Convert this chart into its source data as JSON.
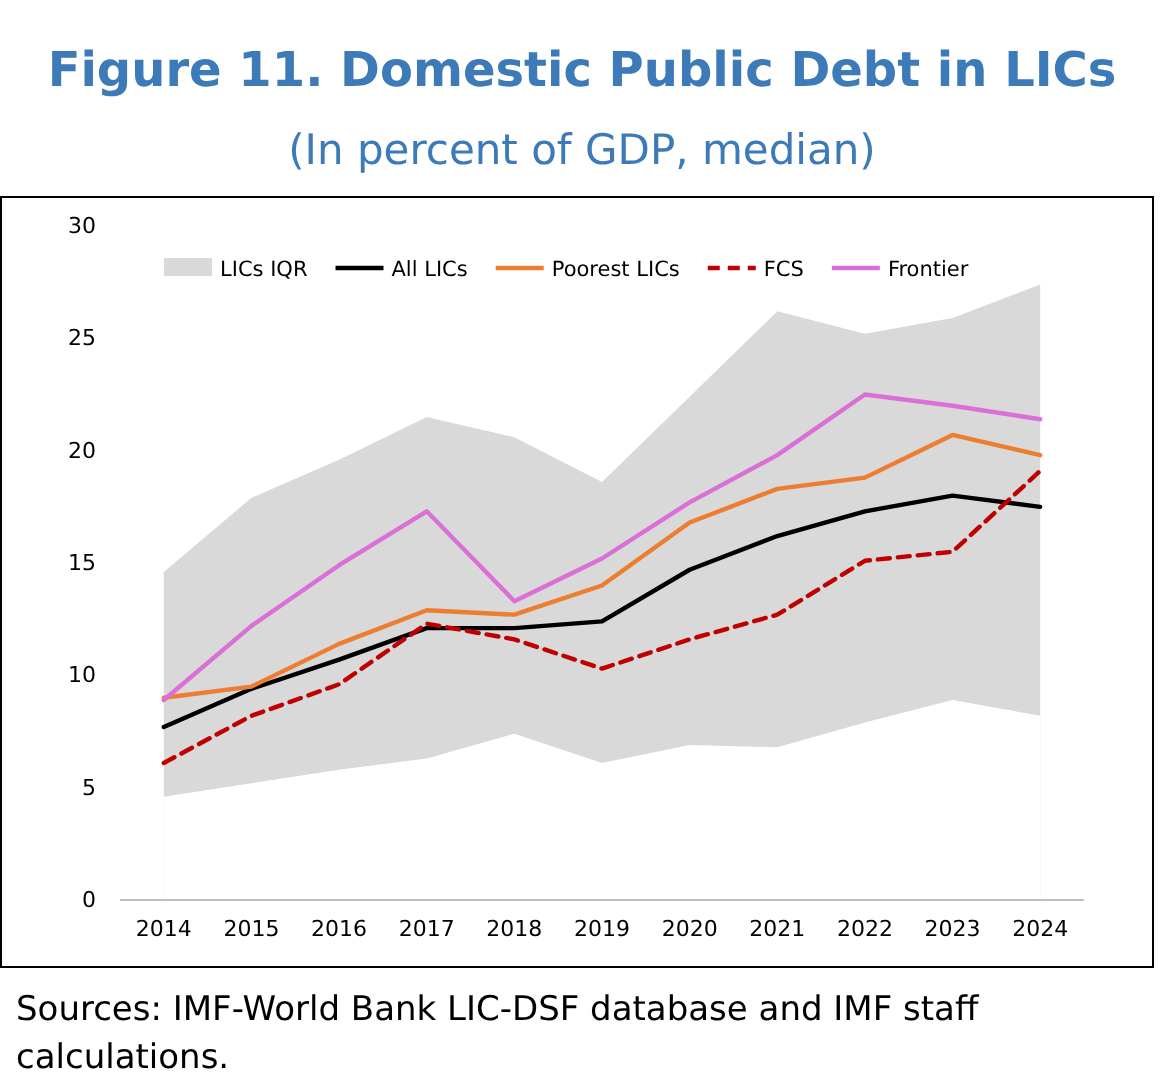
{
  "chart_data": {
    "type": "line",
    "title": "Figure 11. Domestic Public Debt in LICs",
    "subtitle": "(In percent of GDP, median)",
    "categories": [
      "2014",
      "2015",
      "2016",
      "2017",
      "2018",
      "2019",
      "2020",
      "2021",
      "2022",
      "2023",
      "2024"
    ],
    "series": [
      {
        "name": "LICs IQR",
        "type": "area",
        "color": "#d9d9d9",
        "values": [
          14.6,
          17.9,
          19.6,
          21.5,
          20.6,
          18.6,
          22.4,
          26.2,
          25.2,
          25.9,
          27.4
        ]
      },
      {
        "type": "area",
        "color": "#ffffff",
        "values": [
          4.6,
          5.2,
          5.8,
          6.3,
          7.4,
          6.1,
          6.9,
          6.8,
          7.9,
          8.9,
          8.2
        ]
      },
      {
        "name": "All LICs",
        "color": "#000000",
        "values": [
          7.7,
          9.4,
          10.7,
          12.1,
          12.1,
          12.4,
          14.7,
          16.2,
          17.3,
          18.0,
          17.5
        ]
      },
      {
        "name": "Poorest LICs",
        "color": "#ed7d31",
        "values": [
          9.0,
          9.5,
          11.4,
          12.9,
          12.7,
          14.0,
          16.8,
          18.3,
          18.8,
          20.7,
          19.8
        ]
      },
      {
        "name": "FCS",
        "color": "#c00000",
        "line_style": "dashed",
        "values": [
          6.1,
          8.2,
          9.6,
          12.3,
          11.6,
          10.3,
          11.6,
          12.7,
          15.1,
          15.5,
          19.1
        ]
      },
      {
        "name": "Frontier",
        "color": "#da70d6",
        "values": [
          8.9,
          12.2,
          14.9,
          17.3,
          13.3,
          15.2,
          17.7,
          19.8,
          22.5,
          22.0,
          21.4
        ]
      }
    ],
    "ylim": [
      0,
      30
    ],
    "yticks": [
      0,
      5,
      10,
      15,
      20,
      25,
      30
    ],
    "legend": "top",
    "grid": false,
    "marker": "none",
    "annotations": [
      "Sources: IMF-World Bank LIC-DSF database and IMF staff calculations."
    ]
  }
}
